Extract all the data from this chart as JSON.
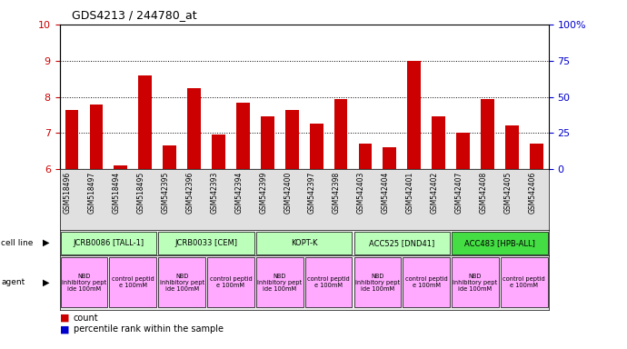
{
  "title": "GDS4213 / 244780_at",
  "samples": [
    "GSM518496",
    "GSM518497",
    "GSM518494",
    "GSM518495",
    "GSM542395",
    "GSM542396",
    "GSM542393",
    "GSM542394",
    "GSM542399",
    "GSM542400",
    "GSM542397",
    "GSM542398",
    "GSM542403",
    "GSM542404",
    "GSM542401",
    "GSM542402",
    "GSM542407",
    "GSM542408",
    "GSM542405",
    "GSM542406"
  ],
  "count_values": [
    7.65,
    7.8,
    6.1,
    8.6,
    6.65,
    8.25,
    6.95,
    7.85,
    7.45,
    7.65,
    7.25,
    7.95,
    6.7,
    6.6,
    9.0,
    7.45,
    7.0,
    7.95,
    7.2,
    6.7
  ],
  "percentile_values": [
    0.12,
    0.12,
    0.05,
    0.13,
    0.13,
    0.13,
    0.05,
    0.13,
    0.13,
    0.13,
    0.05,
    0.05,
    0.05,
    0.05,
    0.13,
    0.13,
    0.05,
    0.13,
    0.05,
    0.05
  ],
  "bar_base": 6.0,
  "ylim_left": [
    6,
    10
  ],
  "ylim_right": [
    0,
    100
  ],
  "yticks_left": [
    6,
    7,
    8,
    9,
    10
  ],
  "yticks_right": [
    0,
    25,
    50,
    75,
    100
  ],
  "ytick_labels_right": [
    "0",
    "25",
    "50",
    "75",
    "100%"
  ],
  "count_color": "#cc0000",
  "percentile_color": "#0000cc",
  "cell_lines": [
    {
      "label": "JCRB0086 [TALL-1]",
      "start": 0,
      "end": 4,
      "color": "#bbffbb"
    },
    {
      "label": "JCRB0033 [CEM]",
      "start": 4,
      "end": 8,
      "color": "#bbffbb"
    },
    {
      "label": "KOPT-K",
      "start": 8,
      "end": 12,
      "color": "#bbffbb"
    },
    {
      "label": "ACC525 [DND41]",
      "start": 12,
      "end": 16,
      "color": "#bbffbb"
    },
    {
      "label": "ACC483 [HPB-ALL]",
      "start": 16,
      "end": 20,
      "color": "#44dd44"
    }
  ],
  "agents": [
    {
      "label": "NBD\ninhibitory pept\nide 100mM",
      "start": 0,
      "end": 2,
      "color": "#ffaaff"
    },
    {
      "label": "control peptid\ne 100mM",
      "start": 2,
      "end": 4,
      "color": "#ffaaff"
    },
    {
      "label": "NBD\ninhibitory pept\nide 100mM",
      "start": 4,
      "end": 6,
      "color": "#ffaaff"
    },
    {
      "label": "control peptid\ne 100mM",
      "start": 6,
      "end": 8,
      "color": "#ffaaff"
    },
    {
      "label": "NBD\ninhibitory pept\nide 100mM",
      "start": 8,
      "end": 10,
      "color": "#ffaaff"
    },
    {
      "label": "control peptid\ne 100mM",
      "start": 10,
      "end": 12,
      "color": "#ffaaff"
    },
    {
      "label": "NBD\ninhibitory pept\nide 100mM",
      "start": 12,
      "end": 14,
      "color": "#ffaaff"
    },
    {
      "label": "control peptid\ne 100mM",
      "start": 14,
      "end": 16,
      "color": "#ffaaff"
    },
    {
      "label": "NBD\ninhibitory pept\nide 100mM",
      "start": 16,
      "end": 18,
      "color": "#ffaaff"
    },
    {
      "label": "control peptid\ne 100mM",
      "start": 18,
      "end": 20,
      "color": "#ffaaff"
    }
  ],
  "background_color": "#ffffff"
}
